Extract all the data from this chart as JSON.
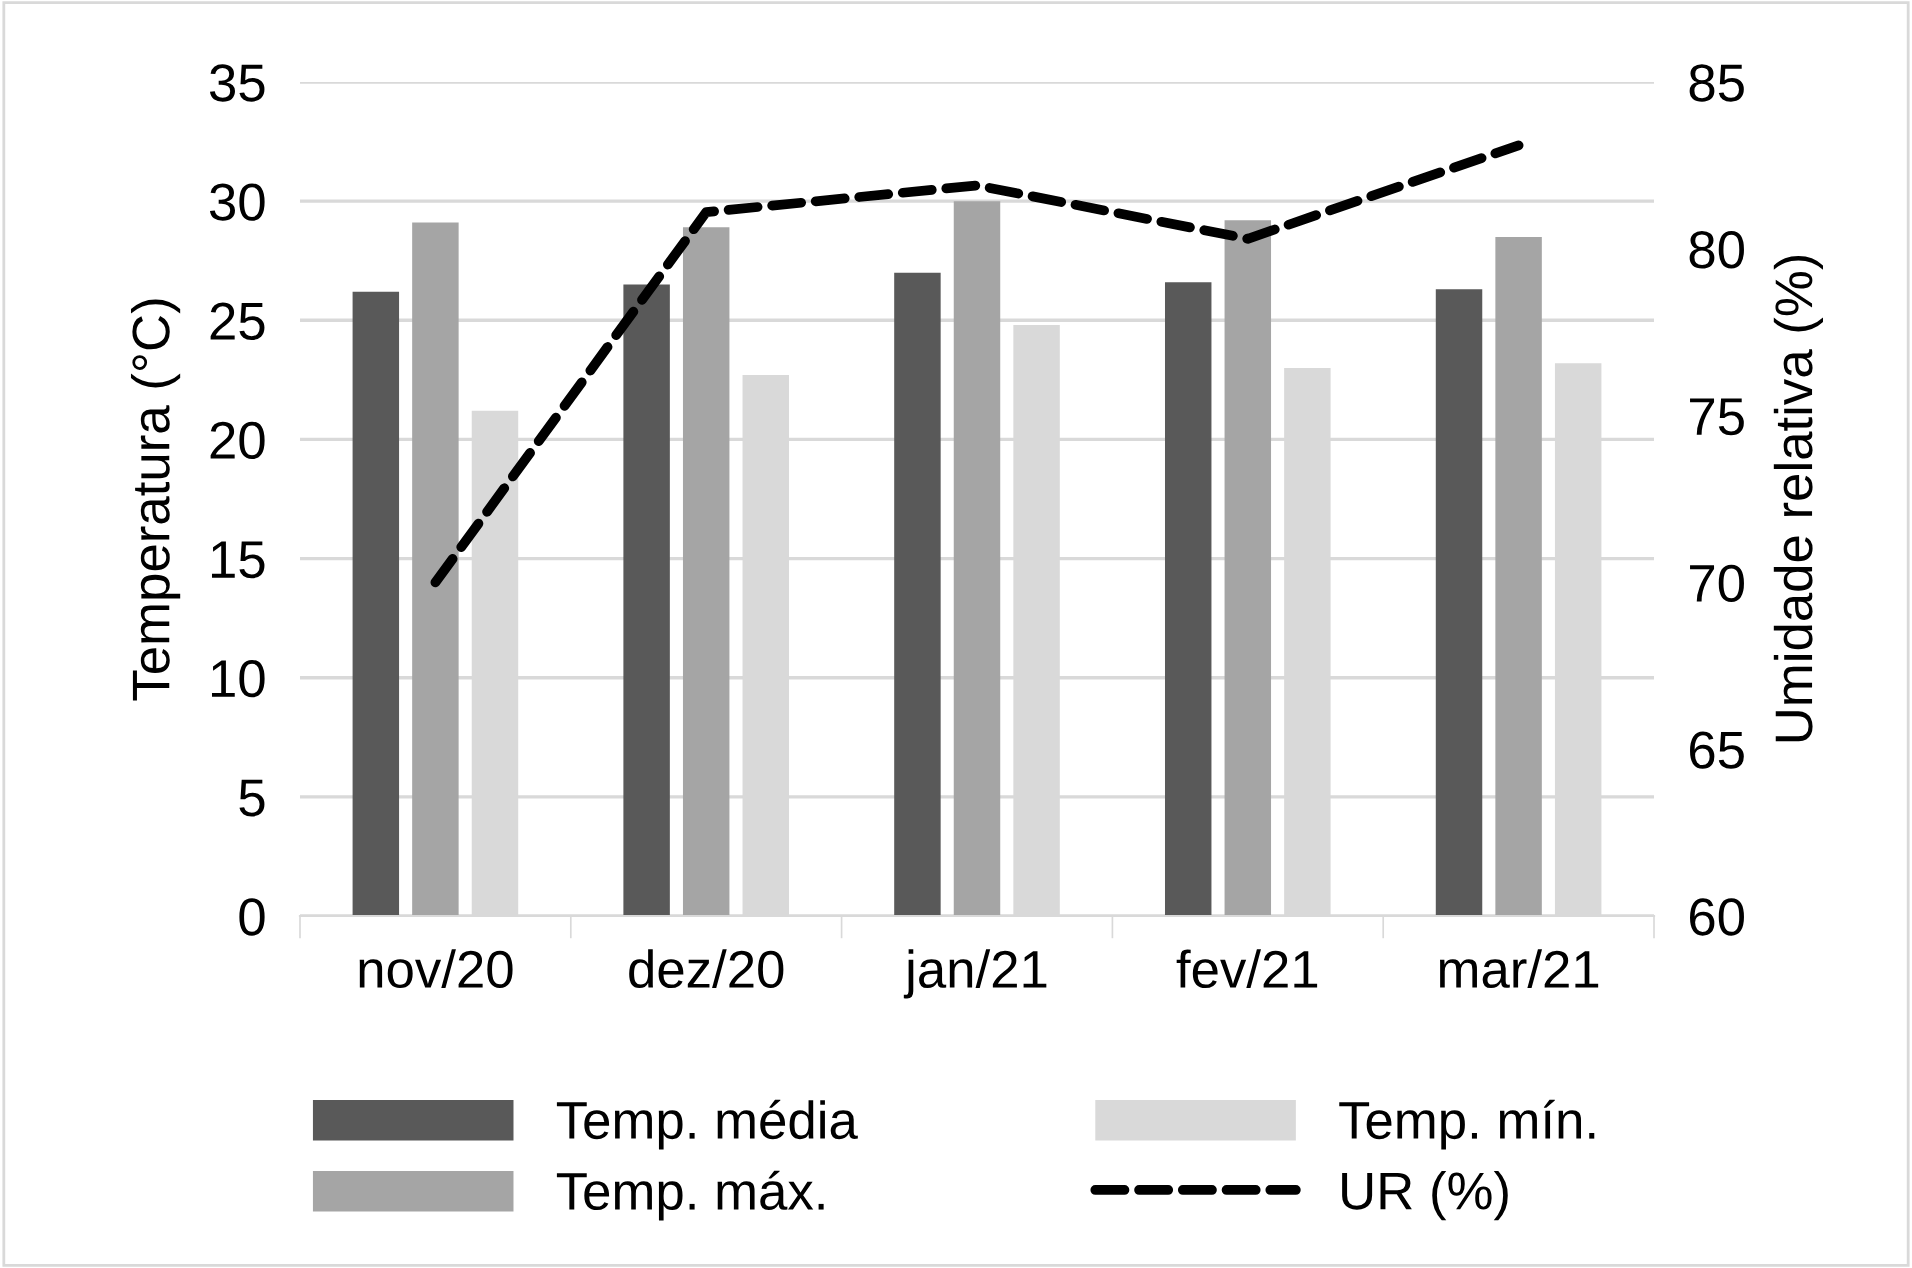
{
  "chart_data": {
    "type": "bar",
    "categories": [
      "nov/20",
      "dez/20",
      "jan/21",
      "fev/21",
      "mar/21"
    ],
    "series": [
      {
        "name": "Temp. média",
        "color": "#595959",
        "values": [
          26.2,
          26.5,
          27.0,
          26.6,
          26.3
        ]
      },
      {
        "name": "Temp. máx.",
        "color": "#a5a5a5",
        "values": [
          29.1,
          28.9,
          30.0,
          29.2,
          28.5
        ]
      },
      {
        "name": "Temp. mín.",
        "color": "#d9d9d9",
        "values": [
          21.2,
          22.7,
          24.8,
          23.0,
          23.2
        ]
      },
      {
        "name": "UR (%)",
        "type": "line",
        "axis": "y2",
        "color": "#000000",
        "line_style": "dashed",
        "values": [
          70.0,
          81.1,
          81.9,
          80.3,
          83.1
        ]
      }
    ],
    "ylabel": "Temperatura (°C)",
    "y2label": "Umidade relativa (%)",
    "ylim": [
      0,
      35
    ],
    "yticks": [
      0,
      5,
      10,
      15,
      20,
      25,
      30,
      35
    ],
    "y2lim": [
      60,
      85
    ],
    "y2ticks": [
      60,
      65,
      70,
      75,
      80,
      85
    ],
    "grid": "y",
    "legend": "bottom",
    "marker": "none"
  }
}
